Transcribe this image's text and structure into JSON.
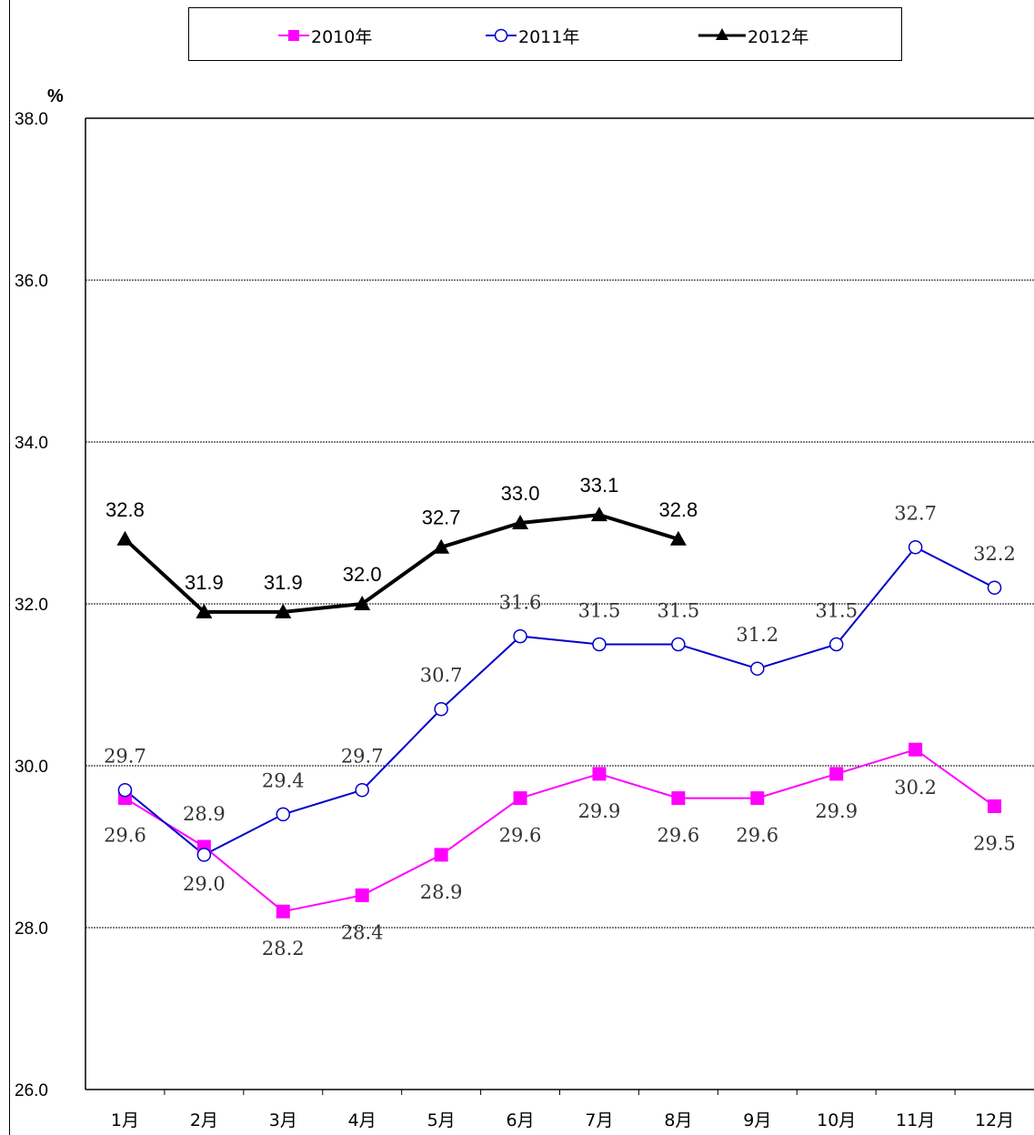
{
  "chart_data": {
    "type": "line",
    "title": "",
    "xlabel": "",
    "ylabel": "%",
    "ylim": [
      26.0,
      38.0
    ],
    "yticks": [
      "26.0",
      "28.0",
      "30.0",
      "32.0",
      "34.0",
      "36.0",
      "38.0"
    ],
    "categories": [
      "1月",
      "2月",
      "3月",
      "4月",
      "5月",
      "6月",
      "7月",
      "8月",
      "9月",
      "10月",
      "11月",
      "12月"
    ],
    "grid": true,
    "legend_position": "top-center",
    "series": [
      {
        "name": "2010年",
        "color": "#ff00ff",
        "marker": "square",
        "values": [
          29.6,
          29.0,
          28.2,
          28.4,
          28.9,
          29.6,
          29.9,
          29.6,
          29.6,
          29.9,
          30.2,
          29.5
        ]
      },
      {
        "name": "2011年",
        "color": "#0000cc",
        "marker": "circle-open",
        "values": [
          29.7,
          28.9,
          29.4,
          29.7,
          30.7,
          31.6,
          31.5,
          31.5,
          31.2,
          31.5,
          32.7,
          32.2
        ]
      },
      {
        "name": "2012年",
        "color": "#000000",
        "marker": "triangle",
        "values": [
          32.8,
          31.9,
          31.9,
          32.0,
          32.7,
          33.0,
          33.1,
          32.8,
          null,
          null,
          null,
          null
        ]
      }
    ]
  }
}
